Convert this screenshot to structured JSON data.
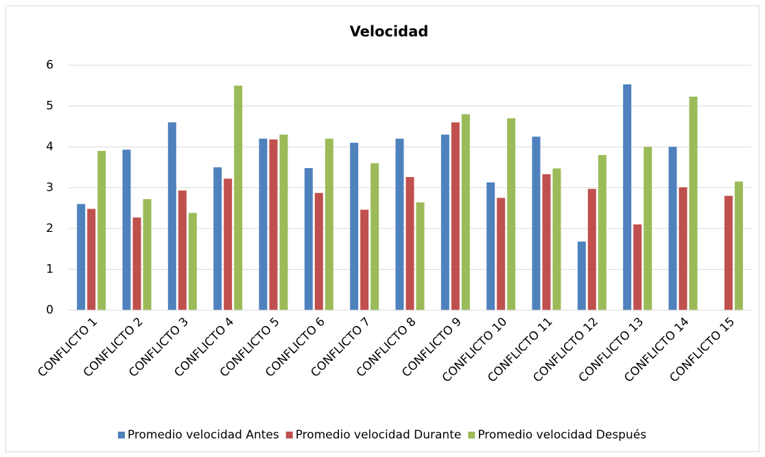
{
  "chart_data": {
    "type": "bar",
    "title": "Velocidad",
    "categories": [
      "CONFLICTO 1",
      "CONFLICTO 2",
      "CONFLICTO 3",
      "CONFLICTO 4",
      "CONFLICTO 5",
      "CONFLICTO 6",
      "CONFLICTO 7",
      "CONFLICTO 8",
      "CONFLICTO 9",
      "CONFLICTO 10",
      "CONFLICTO 11",
      "CONFLICTO 12",
      "CONFLICTO 13",
      "CONFLICTO 14",
      "CONFLICTO 15"
    ],
    "series": [
      {
        "name": "Promedio velocidad Antes",
        "color": "#4f81bd",
        "values": [
          2.6,
          3.93,
          4.6,
          3.5,
          4.2,
          3.48,
          4.1,
          4.2,
          4.3,
          3.13,
          4.25,
          1.68,
          5.53,
          4.0,
          null
        ]
      },
      {
        "name": "Promedio velocidad Durante",
        "color": "#c0504d",
        "values": [
          2.48,
          2.27,
          2.93,
          3.22,
          4.18,
          2.87,
          2.46,
          3.26,
          4.6,
          2.75,
          3.33,
          2.97,
          2.1,
          3.01,
          2.8
        ]
      },
      {
        "name": "Promedio velocidad Después",
        "color": "#9bbb59",
        "values": [
          3.9,
          2.72,
          2.38,
          5.5,
          4.3,
          4.2,
          3.6,
          2.64,
          4.8,
          4.7,
          3.47,
          3.8,
          4.0,
          5.23,
          3.15
        ]
      }
    ],
    "ylim": [
      0,
      6
    ],
    "yticks": [
      0,
      1,
      2,
      3,
      4,
      5,
      6
    ],
    "grid": true,
    "legend": "bottom"
  }
}
